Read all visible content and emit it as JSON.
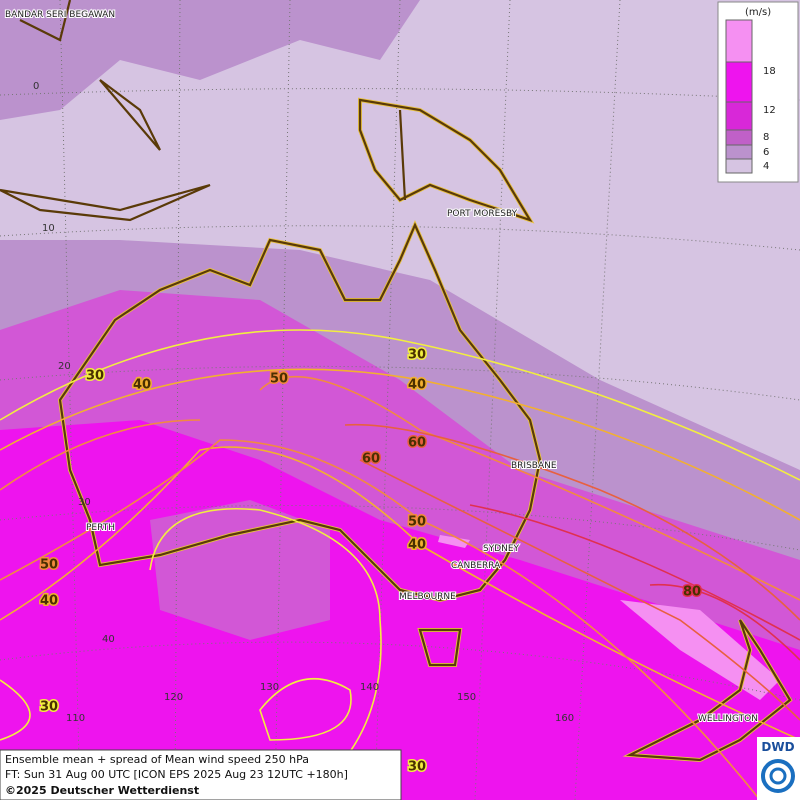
{
  "legend": {
    "unit": "(m/s)",
    "labels": [
      "18",
      "12",
      "8",
      "6",
      "4"
    ]
  },
  "cities": [
    "BANDAR SERI BEGAWAN",
    "PORT MORESBY",
    "BRISBANE",
    "PERTH",
    "SYDNEY",
    "CANBERRA",
    "MELBOURNE",
    "WELLINGTON"
  ],
  "latitudes": [
    "0",
    "10",
    "20",
    "30",
    "40"
  ],
  "longitudes": [
    "110",
    "120",
    "130",
    "140",
    "150",
    "160"
  ],
  "contour_labels": [
    "30",
    "30",
    "30",
    "30",
    "40",
    "40",
    "40",
    "40",
    "50",
    "50",
    "50",
    "60",
    "60",
    "80"
  ],
  "info": {
    "line1": "Ensemble mean + spread of Mean wind speed 250 hPa",
    "line2": "FT: Sun 31 Aug 00 UTC [ICON EPS 2025 Aug 23 12UTC +180h]",
    "line3": "©2025 Deutscher Wetterdienst"
  },
  "logo": "DWD"
}
